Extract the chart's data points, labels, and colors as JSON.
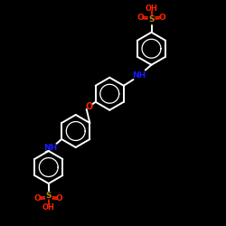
{
  "bg_color": "#000000",
  "bond_color": "#ffffff",
  "bond_lw": 1.4,
  "nh_color": "#1a1aff",
  "o_color": "#ff2200",
  "s_color": "#b8860b",
  "figsize": [
    2.5,
    2.5
  ],
  "dpi": 100,
  "xlim": [
    0,
    10
  ],
  "ylim": [
    0,
    10
  ]
}
